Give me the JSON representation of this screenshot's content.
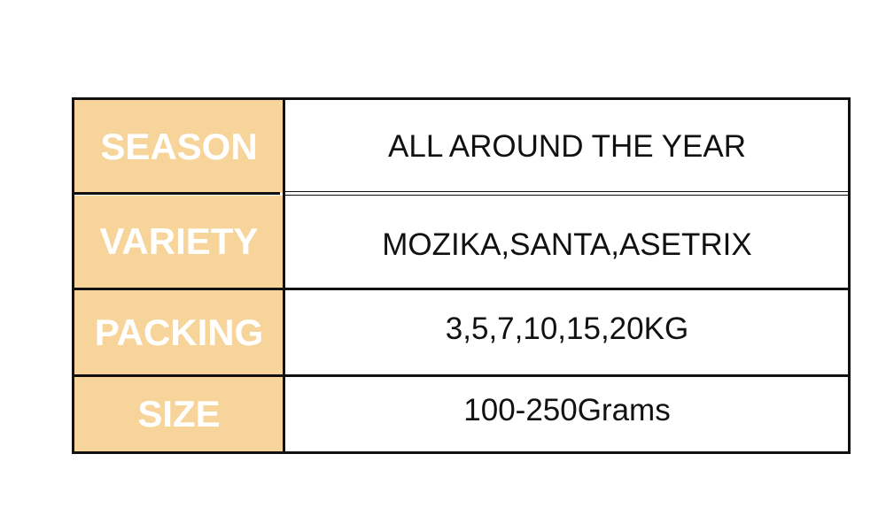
{
  "colors": {
    "label_bg": "#F7D49A",
    "label_text": "#FFFFFF",
    "border": "#111111"
  },
  "rows": [
    {
      "label": "SEASON",
      "value": "ALL AROUND THE YEAR"
    },
    {
      "label": "VARIETY",
      "value": "MOZIKA,SANTA,ASETRIX"
    },
    {
      "label": "PACKING",
      "value": "3,5,7,10,15,20KG"
    },
    {
      "label": "SIZE",
      "value": "100-250Grams"
    }
  ]
}
